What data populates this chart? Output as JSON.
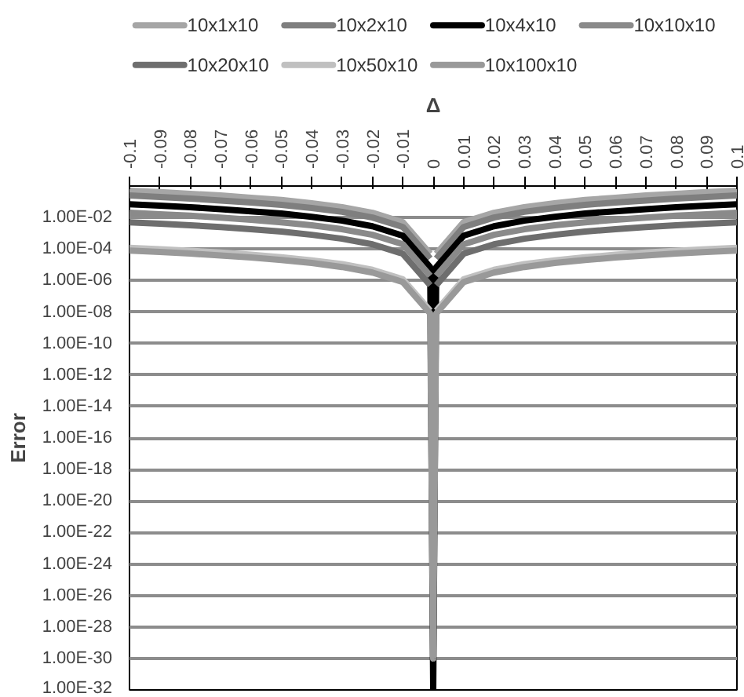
{
  "chart_data": {
    "type": "line",
    "xlabel": "Δ",
    "ylabel": "Error",
    "log": "y",
    "grid": "y",
    "legend": "top",
    "line_style": "solid",
    "marker": "none",
    "x": [
      -0.1,
      -0.09,
      -0.08,
      -0.07,
      -0.06,
      -0.05,
      -0.04,
      -0.03,
      -0.02,
      -0.01,
      -0.001,
      0,
      0.001,
      0.01,
      0.02,
      0.03,
      0.04,
      0.05,
      0.06,
      0.07,
      0.08,
      0.09,
      0.1
    ],
    "xlim": [
      -0.1,
      0.1
    ],
    "xticks": [
      -0.1,
      -0.09,
      -0.08,
      -0.07,
      -0.06,
      -0.05,
      -0.04,
      -0.03,
      -0.02,
      -0.01,
      0,
      0.01,
      0.02,
      0.03,
      0.04,
      0.05,
      0.06,
      0.07,
      0.08,
      0.09,
      0.1
    ],
    "ylim": [
      1e-32,
      1
    ],
    "yticks": [
      {
        "value": 1e-32,
        "label": "1.00E-32"
      },
      {
        "value": 1e-30,
        "label": "1.00E-30"
      },
      {
        "value": 1e-28,
        "label": "1.00E-28"
      },
      {
        "value": 1e-26,
        "label": "1.00E-26"
      },
      {
        "value": 1e-24,
        "label": "1.00E-24"
      },
      {
        "value": 1e-22,
        "label": "1.00E-22"
      },
      {
        "value": 1e-20,
        "label": "1.00E-20"
      },
      {
        "value": 1e-18,
        "label": "1.00E-18"
      },
      {
        "value": 1e-16,
        "label": "1.00E-16"
      },
      {
        "value": 1e-14,
        "label": "1.00E-14"
      },
      {
        "value": 1e-12,
        "label": "1.00E-12"
      },
      {
        "value": 1e-10,
        "label": "1.00E-10"
      },
      {
        "value": 1e-08,
        "label": "1.00E-08"
      },
      {
        "value": 1e-06,
        "label": "1.00E-06"
      },
      {
        "value": 0.0001,
        "label": "1.00E-04"
      },
      {
        "value": 0.01,
        "label": "1.00E-02"
      }
    ],
    "series": [
      {
        "name": "10x1x10",
        "color": "#a6a6a6",
        "values": [
          0.5,
          0.41,
          0.32,
          0.25,
          0.18,
          0.13,
          0.08,
          0.045,
          0.02,
          0.005,
          5e-05,
          null,
          5e-05,
          0.005,
          0.02,
          0.045,
          0.08,
          0.13,
          0.18,
          0.25,
          0.32,
          0.41,
          0.5
        ]
      },
      {
        "name": "10x2x10",
        "color": "#7f7f7f",
        "values": [
          0.25,
          0.2,
          0.16,
          0.12,
          0.09,
          0.063,
          0.04,
          0.023,
          0.01,
          0.0025,
          2.5e-05,
          null,
          2.5e-05,
          0.0025,
          0.01,
          0.023,
          0.04,
          0.063,
          0.09,
          0.12,
          0.16,
          0.2,
          0.25
        ]
      },
      {
        "name": "10x4x10",
        "color": "#000000",
        "values": [
          0.07,
          0.057,
          0.045,
          0.034,
          0.025,
          0.018,
          0.011,
          0.0063,
          0.0028,
          0.0007,
          7e-06,
          1e-32,
          7e-06,
          0.0007,
          0.0028,
          0.0063,
          0.011,
          0.018,
          0.025,
          0.034,
          0.045,
          0.057,
          0.07
        ]
      },
      {
        "name": "10x10x10",
        "color": "#8a8a8a",
        "values": [
          0.02,
          0.016,
          0.013,
          0.0098,
          0.0072,
          0.005,
          0.0032,
          0.0018,
          0.0008,
          0.0002,
          2e-06,
          null,
          2e-06,
          0.0002,
          0.0008,
          0.0018,
          0.0032,
          0.005,
          0.0072,
          0.0098,
          0.013,
          0.016,
          0.02
        ]
      },
      {
        "name": "10x20x10",
        "color": "#6e6e6e",
        "values": [
          0.005,
          0.004,
          0.0032,
          0.0025,
          0.0018,
          0.0013,
          0.0008,
          0.00045,
          0.0002,
          5e-05,
          5e-07,
          null,
          5e-07,
          5e-05,
          0.0002,
          0.00045,
          0.0008,
          0.0013,
          0.0018,
          0.0025,
          0.0032,
          0.004,
          0.005
        ]
      },
      {
        "name": "10x50x10",
        "color": "#c0c0c0",
        "values": [
          0.00012,
          9.7e-05,
          7.7e-05,
          5.9e-05,
          4.3e-05,
          3e-05,
          1.9e-05,
          1.1e-05,
          4.8e-06,
          1.2e-06,
          1.2e-08,
          null,
          1.2e-08,
          1.2e-06,
          4.8e-06,
          1.1e-05,
          1.9e-05,
          3e-05,
          4.3e-05,
          5.9e-05,
          7.7e-05,
          9.7e-05,
          0.00012
        ]
      },
      {
        "name": "10x100x10",
        "color": "#999999",
        "values": [
          8e-05,
          6.5e-05,
          5.1e-05,
          3.9e-05,
          2.9e-05,
          2e-05,
          1.3e-05,
          7.2e-06,
          3.2e-06,
          8e-07,
          8e-09,
          1e-30,
          8e-09,
          8e-07,
          3.2e-06,
          7.2e-06,
          1.3e-05,
          2e-05,
          2.9e-05,
          3.9e-05,
          5.1e-05,
          6.5e-05,
          8e-05
        ]
      }
    ]
  }
}
